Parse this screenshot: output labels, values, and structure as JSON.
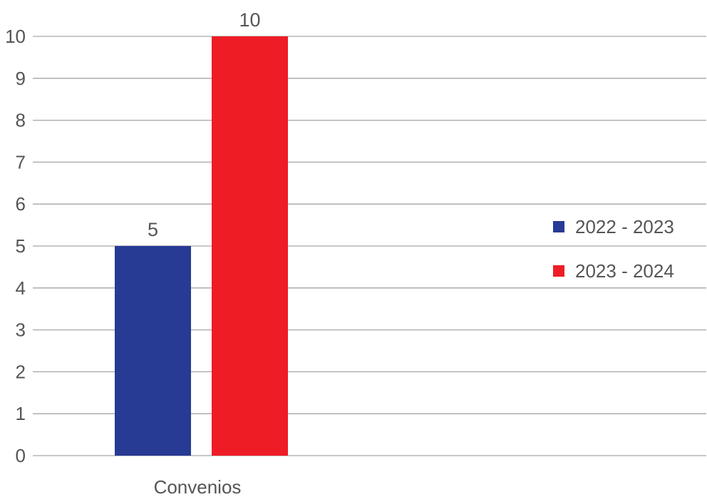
{
  "chart_data": {
    "type": "bar",
    "title": "",
    "xlabel": "",
    "ylabel": "",
    "categories": [
      "Convenios"
    ],
    "series": [
      {
        "name": "2022 - 2023",
        "values": [
          5
        ],
        "color": "#273a94"
      },
      {
        "name": "2023 - 2024",
        "values": [
          10
        ],
        "color": "#ee1c25"
      }
    ],
    "ylim": [
      0,
      10
    ],
    "yticks": [
      "0",
      "1",
      "2",
      "3",
      "4",
      "5",
      "6",
      "7",
      "8",
      "9",
      "10"
    ],
    "data_labels": [
      "5",
      "10"
    ],
    "grid": true,
    "legend_position": "right"
  }
}
